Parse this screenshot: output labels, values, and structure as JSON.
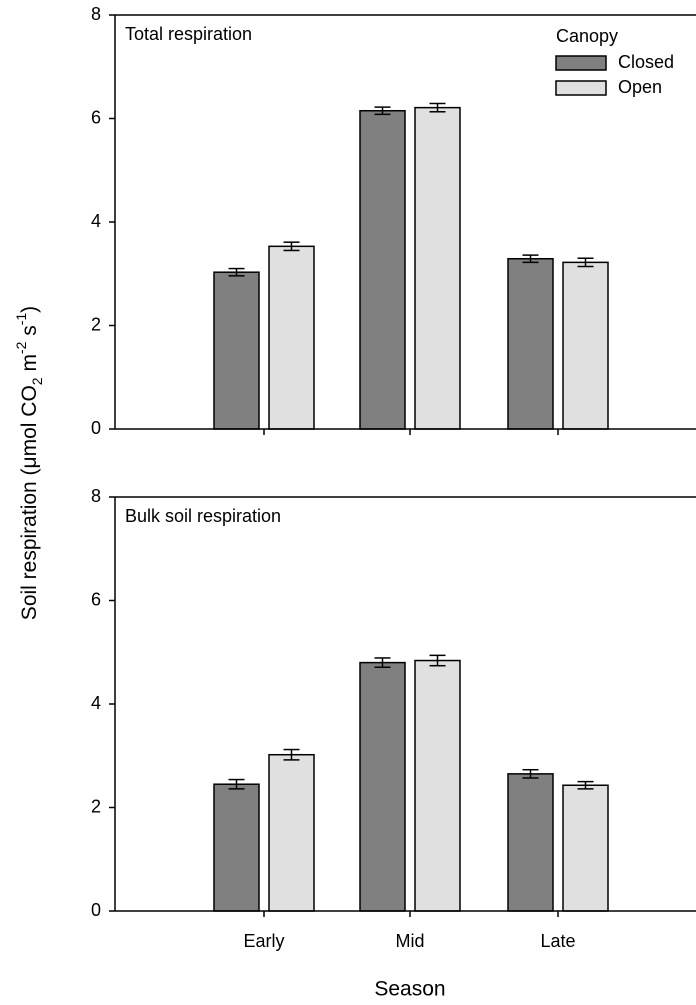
{
  "chart_data": [
    {
      "type": "bar",
      "title": "Total respiration",
      "categories": [
        null,
        null,
        null
      ],
      "ylabel_parts": [
        {
          "text": "Soil respiration (μmol CO"
        },
        {
          "text": "2",
          "shift": "sub"
        },
        {
          "text": " m"
        },
        {
          "text": "-2",
          "shift": "super"
        },
        {
          "text": " s"
        },
        {
          "text": "-1",
          "shift": "super"
        },
        {
          "text": ")"
        }
      ],
      "legend_title": "Canopy",
      "legend": "top-right",
      "series": [
        {
          "name": "Closed",
          "color": "#808080",
          "values": [
            3.03,
            6.15,
            3.29
          ],
          "error": [
            0.07,
            0.07,
            0.07
          ]
        },
        {
          "name": "Open",
          "color": "#e0e0e0",
          "values": [
            3.53,
            6.21,
            3.22
          ],
          "error": [
            0.08,
            0.08,
            0.08
          ]
        }
      ],
      "ylim": [
        0,
        8
      ],
      "yticks": [
        0,
        2,
        4,
        6,
        8
      ]
    },
    {
      "type": "bar",
      "title": "Bulk soil respiration",
      "categories": [
        "Early",
        "Mid",
        "Late"
      ],
      "xlabel": "Season",
      "series": [
        {
          "name": "Closed",
          "color": "#808080",
          "values": [
            2.45,
            4.8,
            2.65
          ],
          "error": [
            0.09,
            0.09,
            0.08
          ]
        },
        {
          "name": "Open",
          "color": "#e0e0e0",
          "values": [
            3.02,
            4.84,
            2.43
          ],
          "error": [
            0.1,
            0.1,
            0.07
          ]
        }
      ],
      "ylim": [
        0,
        8
      ],
      "yticks": [
        0,
        2,
        4,
        6,
        8
      ]
    }
  ]
}
